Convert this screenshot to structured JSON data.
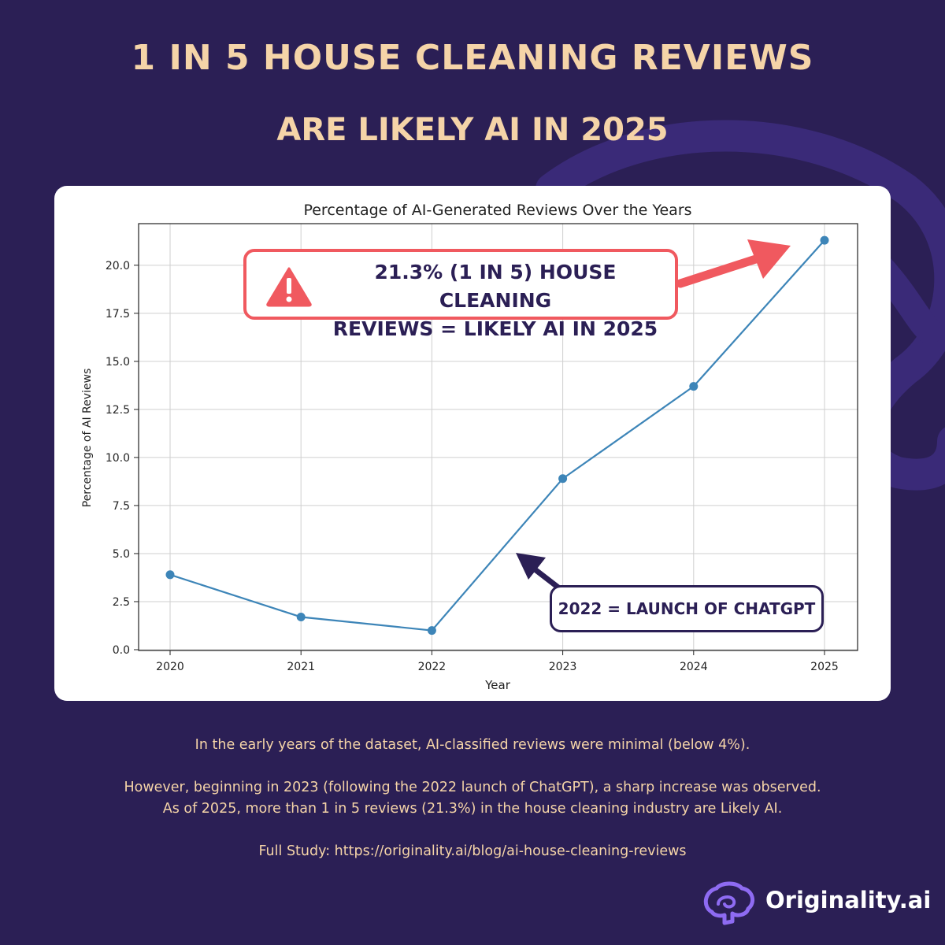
{
  "headline": "1 IN 5 HOUSE CLEANING REVIEWS",
  "subheadline": "ARE LIKELY AI IN 2025",
  "colors": {
    "background": "#2b1f55",
    "accent_text": "#f5d4a8",
    "line": "#3d85b8",
    "alert": "#f0595f"
  },
  "chart_data": {
    "type": "line",
    "title": "Percentage of AI-Generated Reviews Over the Years",
    "xlabel": "Year",
    "ylabel": "Percentage of AI Reviews",
    "x": [
      2020,
      2021,
      2022,
      2023,
      2024,
      2025
    ],
    "xticks": [
      "2020",
      "2021",
      "2022",
      "2023",
      "2024",
      "2025"
    ],
    "yticks": [
      "0.0",
      "2.5",
      "5.0",
      "7.5",
      "10.0",
      "12.5",
      "15.0",
      "17.5",
      "20.0"
    ],
    "ylim": [
      0,
      22
    ],
    "grid": true,
    "series": [
      {
        "values": [
          3.9,
          1.7,
          1.0,
          8.9,
          13.7,
          21.3
        ]
      }
    ]
  },
  "callouts": {
    "main_line1": "21.3% (1 IN 5) HOUSE CLEANING",
    "main_line2": "REVIEWS = LIKELY AI IN 2025",
    "main_icon": "warning-triangle-icon",
    "chatgpt": "2022 = LAUNCH OF CHATGPT"
  },
  "notes": {
    "line1": "In the early years of the dataset, AI-classified reviews were minimal (below 4%).",
    "line2": "However, beginning in 2023 (following the 2022 launch of ChatGPT), a sharp increase was observed.",
    "line3": "As of 2025, more than 1 in 5 reviews (21.3%) in the house cleaning industry are Likely AI.",
    "line4": "Full Study: https://originality.ai/blog/ai-house-cleaning-reviews"
  },
  "brand": {
    "name": "Originality.ai",
    "icon": "brain-icon"
  }
}
